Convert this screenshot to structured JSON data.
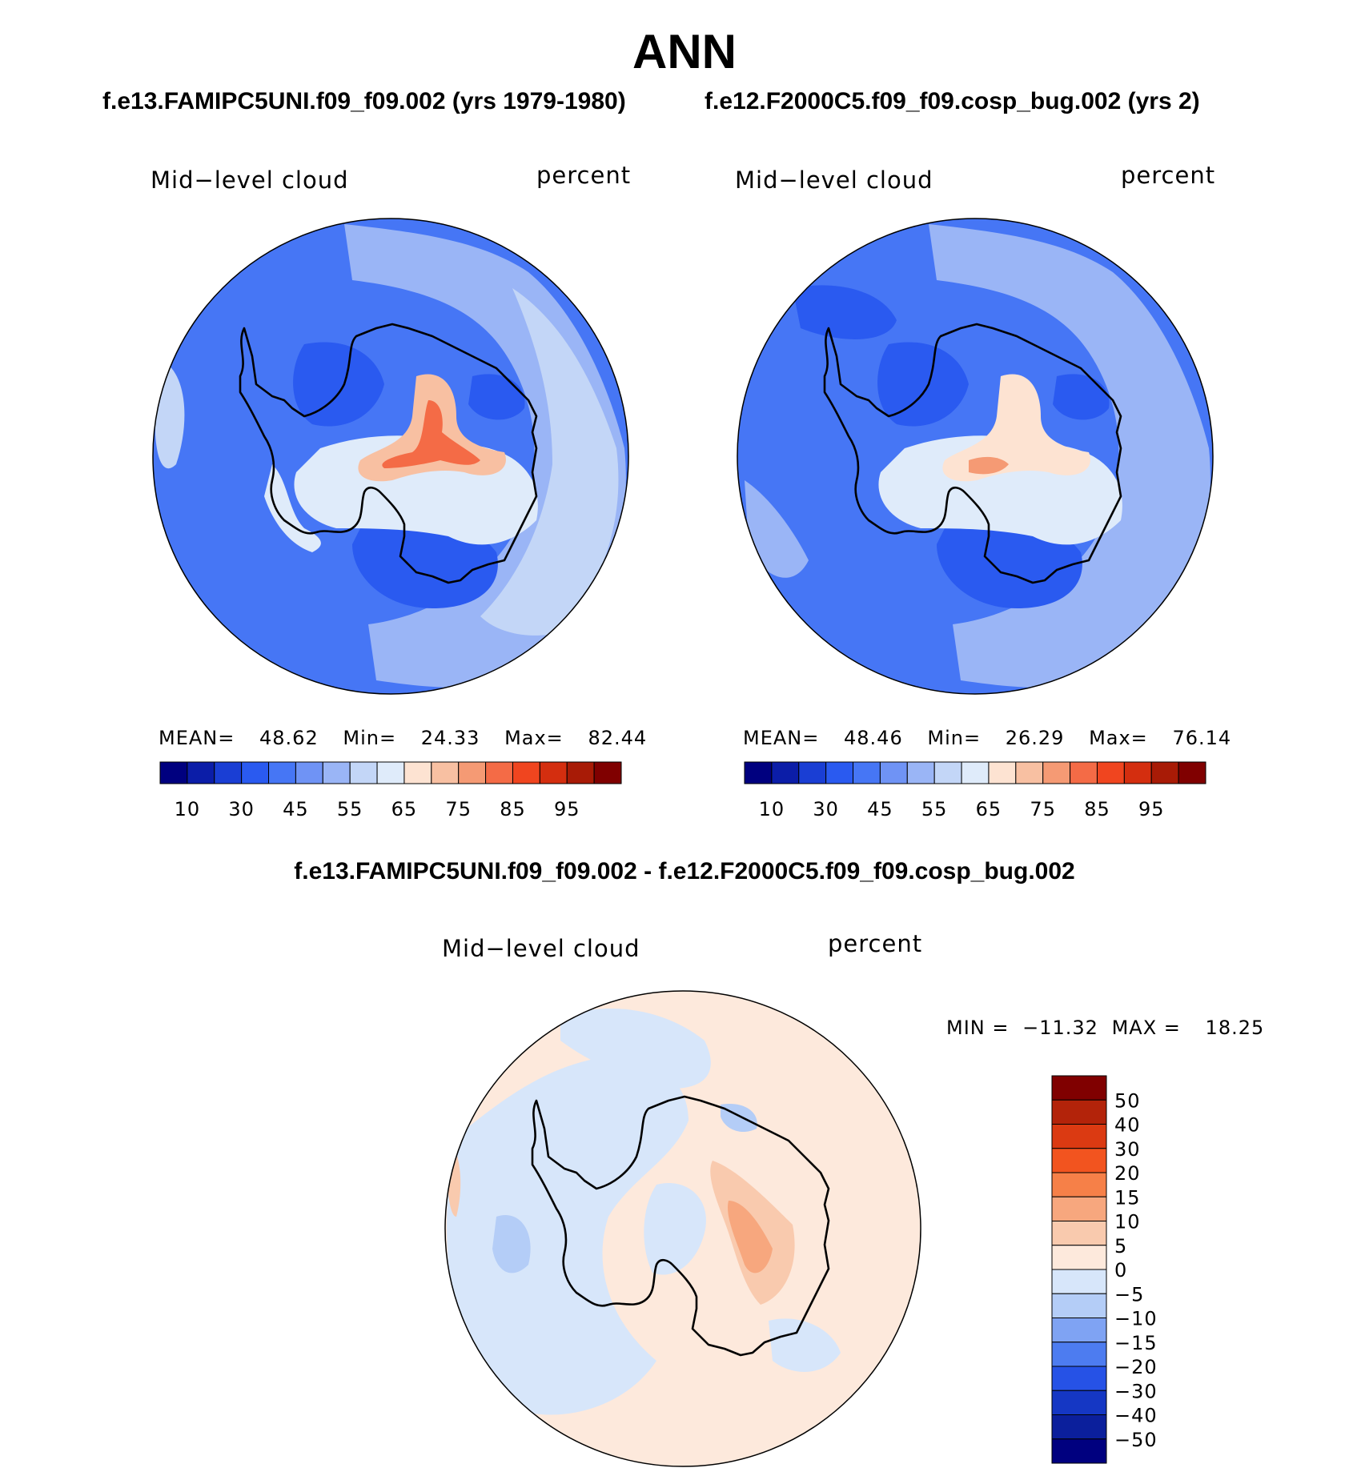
{
  "page": {
    "main_title": "ANN",
    "case1_title": "f.e13.FAMIPC5UNI.f09_f09.002 (yrs 1979-1980)",
    "case2_title": "f.e12.F2000C5.f09_f09.cosp_bug.002 (yrs 2)",
    "diff_title": "f.e13.FAMIPC5UNI.f09_f09.002 - f.e12.F2000C5.f09_f09.cosp_bug.002"
  },
  "chart_data": [
    {
      "type": "heatmap",
      "projection": "south-polar-stereographic",
      "variable": "Mid−level cloud",
      "units": "percent",
      "stats": {
        "mean_label": "MEAN=",
        "mean": "48.62",
        "min_label": "Min=",
        "min": "24.33",
        "max_label": "Max=",
        "max": "82.44"
      },
      "colorbar": {
        "orientation": "horizontal",
        "levels": [
          "10",
          "20",
          "30",
          "40",
          "45",
          "50",
          "55",
          "60",
          "65",
          "70",
          "75",
          "80",
          "85",
          "90",
          "95"
        ],
        "tick_labels": [
          "10",
          "30",
          "45",
          "55",
          "65",
          "75",
          "85",
          "95"
        ],
        "colors": [
          "#00007f",
          "#0b1da8",
          "#1a3ed4",
          "#2a5af0",
          "#4676f5",
          "#6f93f5",
          "#9ab5f6",
          "#c3d6f7",
          "#dfebfa",
          "#fde3d2",
          "#f8c0a2",
          "#f59a74",
          "#f46b46",
          "#f0451f",
          "#d42e0f",
          "#a81b06",
          "#800000"
        ]
      }
    },
    {
      "type": "heatmap",
      "projection": "south-polar-stereographic",
      "variable": "Mid−level cloud",
      "units": "percent",
      "stats": {
        "mean_label": "MEAN=",
        "mean": "48.46",
        "min_label": "Min=",
        "min": "26.29",
        "max_label": "Max=",
        "max": "76.14"
      },
      "colorbar": {
        "orientation": "horizontal",
        "levels": [
          "10",
          "20",
          "30",
          "40",
          "45",
          "50",
          "55",
          "60",
          "65",
          "70",
          "75",
          "80",
          "85",
          "90",
          "95"
        ],
        "tick_labels": [
          "10",
          "30",
          "45",
          "55",
          "65",
          "75",
          "85",
          "95"
        ],
        "colors": [
          "#00007f",
          "#0b1da8",
          "#1a3ed4",
          "#2a5af0",
          "#4676f5",
          "#6f93f5",
          "#9ab5f6",
          "#c3d6f7",
          "#dfebfa",
          "#fde3d2",
          "#f8c0a2",
          "#f59a74",
          "#f46b46",
          "#f0451f",
          "#d42e0f",
          "#a81b06",
          "#800000"
        ]
      }
    },
    {
      "type": "heatmap",
      "projection": "south-polar-stereographic",
      "variable": "Mid−level cloud",
      "units": "percent",
      "stats": {
        "min_label": "MIN =",
        "min": "−11.32",
        "max_label": "MAX =",
        "max": "18.25"
      },
      "colorbar": {
        "orientation": "vertical",
        "levels": [
          "50",
          "40",
          "30",
          "20",
          "15",
          "10",
          "5",
          "0",
          "−5",
          "−10",
          "−15",
          "−20",
          "−30",
          "−40",
          "−50"
        ],
        "tick_labels": [
          "50",
          "40",
          "30",
          "20",
          "15",
          "10",
          "5",
          "0",
          "−5",
          "−10",
          "−15",
          "−20",
          "−30",
          "−40",
          "−50"
        ],
        "colors": [
          "#800000",
          "#b3230a",
          "#db3a12",
          "#f2541f",
          "#f68048",
          "#f7a77e",
          "#f9caae",
          "#fde9dc",
          "#d7e6fa",
          "#b4cdf7",
          "#7fa3f3",
          "#4d7cf0",
          "#2652e6",
          "#1537c4",
          "#0b1f9c",
          "#00007f"
        ]
      }
    }
  ]
}
